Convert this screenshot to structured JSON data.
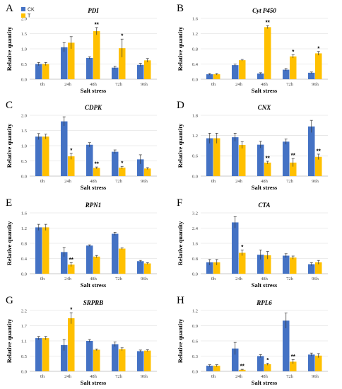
{
  "legend": [
    {
      "label": "CK",
      "color": "#4472C4"
    },
    {
      "label": "T",
      "color": "#FFC000"
    }
  ],
  "chart_data": [
    {
      "panel": "A",
      "title": "PDI",
      "type": "bar",
      "xlabel": "Salt stress",
      "ylabel": "Relative quantity",
      "categories": [
        "0h",
        "24h",
        "48h",
        "72h",
        "96h"
      ],
      "yticks": [
        "0.0",
        "0.5",
        "1.0",
        "1.5",
        "2.0"
      ],
      "ylim": [
        0,
        2.0
      ],
      "series": [
        {
          "name": "CK",
          "values": [
            0.5,
            1.05,
            0.7,
            0.38,
            0.47
          ],
          "errors": [
            0.05,
            0.15,
            0.04,
            0.05,
            0.05
          ]
        },
        {
          "name": "T",
          "values": [
            0.5,
            1.2,
            1.58,
            1.02,
            0.62
          ],
          "errors": [
            0.05,
            0.2,
            0.12,
            0.3,
            0.06
          ]
        }
      ],
      "annotations": [
        "",
        "",
        "**",
        "*",
        ""
      ]
    },
    {
      "panel": "B",
      "title": "Cyt P450",
      "type": "bar",
      "xlabel": "Salt stress",
      "ylabel": "Relative quantity",
      "categories": [
        "0h",
        "24h",
        "48h",
        "72h",
        "96h"
      ],
      "yticks": [
        "0.0",
        "0.4",
        "0.8",
        "1.2",
        "1.6"
      ],
      "ylim": [
        0,
        1.6
      ],
      "series": [
        {
          "name": "CK",
          "values": [
            0.13,
            0.37,
            0.15,
            0.25,
            0.17
          ],
          "errors": [
            0.02,
            0.03,
            0.02,
            0.03,
            0.02
          ]
        },
        {
          "name": "T",
          "values": [
            0.13,
            0.5,
            1.37,
            0.6,
            0.68
          ],
          "errors": [
            0.02,
            0.02,
            0.04,
            0.04,
            0.05
          ]
        }
      ],
      "annotations": [
        "",
        "",
        "**",
        "*",
        "*"
      ]
    },
    {
      "panel": "C",
      "title": "CDPK",
      "type": "bar",
      "xlabel": "Salt stress",
      "ylabel": "Relative quantity",
      "categories": [
        "0h",
        "24h",
        "48h",
        "72h",
        "96h"
      ],
      "yticks": [
        "0.0",
        "0.5",
        "1.0",
        "1.5",
        "2.0"
      ],
      "ylim": [
        0,
        2.0
      ],
      "series": [
        {
          "name": "CK",
          "values": [
            1.3,
            1.8,
            1.03,
            0.8,
            0.55
          ],
          "errors": [
            0.1,
            0.15,
            0.07,
            0.06,
            0.15
          ]
        },
        {
          "name": "T",
          "values": [
            1.3,
            0.65,
            0.27,
            0.28,
            0.25
          ],
          "errors": [
            0.08,
            0.1,
            0.03,
            0.04,
            0.03
          ]
        }
      ],
      "annotations": [
        "",
        "*",
        "**",
        "*",
        ""
      ]
    },
    {
      "panel": "D",
      "title": "CNX",
      "type": "bar",
      "xlabel": "Salt stress",
      "ylabel": "Relative quantity",
      "categories": [
        "0h",
        "24h",
        "48h",
        "72h",
        "96h"
      ],
      "yticks": [
        "0.0",
        "0.6",
        "1.2",
        "1.8"
      ],
      "ylim": [
        0,
        1.8
      ],
      "series": [
        {
          "name": "CK",
          "values": [
            1.12,
            1.15,
            0.93,
            1.02,
            1.47
          ],
          "errors": [
            0.15,
            0.12,
            0.1,
            0.08,
            0.18
          ]
        },
        {
          "name": "T",
          "values": [
            1.12,
            0.92,
            0.4,
            0.4,
            0.57
          ],
          "errors": [
            0.15,
            0.1,
            0.04,
            0.12,
            0.08
          ]
        }
      ],
      "annotations": [
        "",
        "",
        "**",
        "**",
        "**"
      ]
    },
    {
      "panel": "E",
      "title": "RPN1",
      "type": "bar",
      "xlabel": "Salt stress",
      "ylabel": "Relative quantity",
      "categories": [
        "0h",
        "24h",
        "48h",
        "72h",
        "96h"
      ],
      "yticks": [
        "0.0",
        "0.4",
        "0.8",
        "1.2",
        "1.6"
      ],
      "ylim": [
        0,
        1.6
      ],
      "series": [
        {
          "name": "CK",
          "values": [
            1.22,
            0.57,
            0.74,
            1.05,
            0.33
          ],
          "errors": [
            0.08,
            0.12,
            0.02,
            0.04,
            0.02
          ]
        },
        {
          "name": "T",
          "values": [
            1.22,
            0.24,
            0.45,
            0.66,
            0.27
          ],
          "errors": [
            0.08,
            0.05,
            0.03,
            0.02,
            0.02
          ]
        }
      ],
      "annotations": [
        "",
        "**",
        "",
        "",
        ""
      ]
    },
    {
      "panel": "F",
      "title": "CTA",
      "type": "bar",
      "xlabel": "Salt stress",
      "ylabel": "Relative quantity",
      "categories": [
        "0h",
        "24h",
        "48h",
        "72h",
        "96h"
      ],
      "yticks": [
        "0.0",
        "0.8",
        "1.6",
        "2.4",
        "3.2"
      ],
      "ylim": [
        0,
        3.2
      ],
      "series": [
        {
          "name": "CK",
          "values": [
            0.6,
            2.7,
            1.0,
            0.95,
            0.5
          ],
          "errors": [
            0.15,
            0.3,
            0.25,
            0.1,
            0.08
          ]
        },
        {
          "name": "T",
          "values": [
            0.6,
            1.1,
            0.97,
            0.85,
            0.6
          ],
          "errors": [
            0.15,
            0.15,
            0.2,
            0.08,
            0.1
          ]
        }
      ],
      "annotations": [
        "",
        "*",
        "",
        "",
        ""
      ]
    },
    {
      "panel": "G",
      "title": "SRPRB",
      "type": "bar",
      "xlabel": "Salt stress",
      "ylabel": "Relative quantity",
      "categories": [
        "0h",
        "24h",
        "48h",
        "72h",
        "96h"
      ],
      "yticks": [
        "0.0",
        "0.5",
        "1.1",
        "1.7",
        "2.2"
      ],
      "ylim": [
        0,
        2.2
      ],
      "series": [
        {
          "name": "CK",
          "values": [
            1.2,
            0.95,
            1.1,
            0.98,
            0.73
          ],
          "errors": [
            0.06,
            0.2,
            0.05,
            0.08,
            0.04
          ]
        },
        {
          "name": "T",
          "values": [
            1.2,
            1.92,
            0.78,
            0.8,
            0.75
          ],
          "errors": [
            0.06,
            0.2,
            0.03,
            0.05,
            0.03
          ]
        }
      ],
      "annotations": [
        "",
        "*",
        "",
        "",
        ""
      ]
    },
    {
      "panel": "H",
      "title": "RPL6",
      "type": "bar",
      "xlabel": "Salt stress",
      "ylabel": "Relative quantity",
      "categories": [
        "0h",
        "24h",
        "48h",
        "72h",
        "96h"
      ],
      "yticks": [
        "0.0",
        "0.3",
        "0.6",
        "0.9",
        "1.2"
      ],
      "ylim": [
        0,
        1.2
      ],
      "series": [
        {
          "name": "CK",
          "values": [
            0.11,
            0.45,
            0.3,
            1.0,
            0.33
          ],
          "errors": [
            0.02,
            0.12,
            0.03,
            0.15,
            0.03
          ]
        },
        {
          "name": "T",
          "values": [
            0.11,
            0.03,
            0.14,
            0.19,
            0.31
          ],
          "errors": [
            0.02,
            0.01,
            0.02,
            0.04,
            0.04
          ]
        }
      ],
      "annotations": [
        "",
        "**",
        "*",
        "**",
        ""
      ]
    }
  ]
}
